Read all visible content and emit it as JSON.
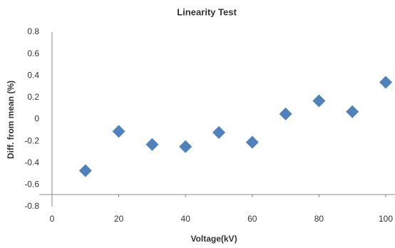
{
  "chart_data": {
    "type": "scatter",
    "title": "Linearity Test",
    "x_label": "Voltage(kV)",
    "y_label": "Diff. from mean (%)",
    "series": [
      {
        "name": "Diff",
        "color": "#4f81bd",
        "x": [
          10,
          20,
          30,
          40,
          50,
          60,
          70,
          80,
          90,
          100
        ],
        "values": [
          -0.47,
          -0.11,
          -0.23,
          -0.25,
          -0.12,
          -0.21,
          0.05,
          0.17,
          0.07,
          0.34
        ]
      }
    ],
    "xlim": [
      0,
      100
    ],
    "xticks": [
      0,
      20,
      40,
      60,
      80,
      100
    ],
    "ylim": [
      -0.8,
      0.8
    ],
    "yticks": [
      0.8,
      0.6,
      0.4,
      0.2,
      0,
      -0.2,
      -0.4,
      -0.6,
      -0.8
    ],
    "grid": false
  }
}
